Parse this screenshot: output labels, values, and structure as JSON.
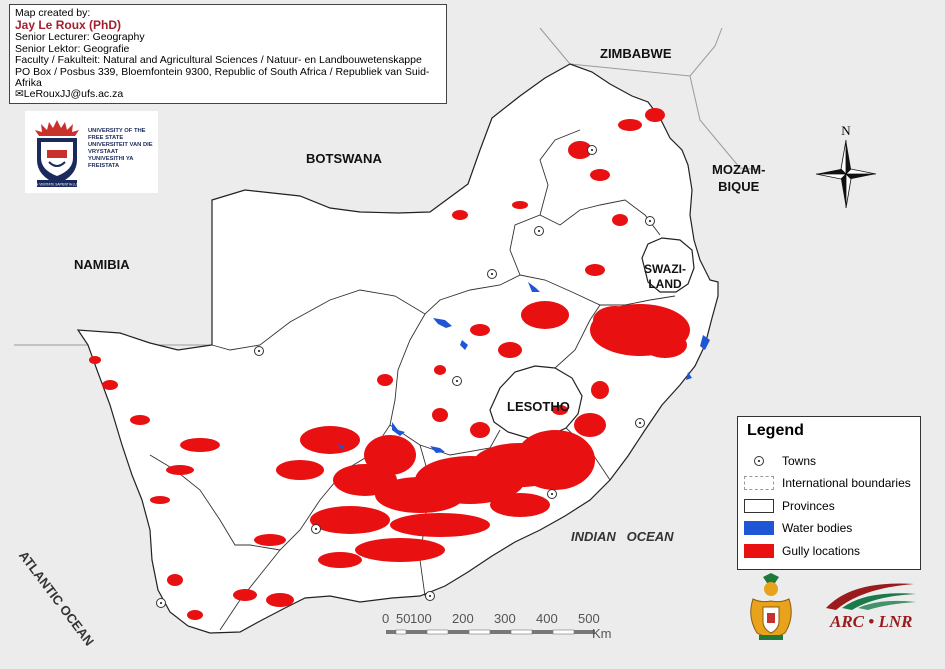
{
  "credit": {
    "line1": "Map created by:",
    "author": "Jay Le Roux (PhD)",
    "line3": "Senior Lecturer: Geography",
    "line4": "Senior Lektor: Geografie",
    "line5": "Faculty / Fakulteit: Natural and Agricultural Sciences / Natuur- en Landbouwetenskappe",
    "line6": "PO Box / Posbus 339, Bloemfontein 9300, Republic of South Africa / Republiek van Suid-Afrika",
    "email": "✉LeRouxJJ@ufs.ac.za"
  },
  "university": {
    "lines": [
      "UNIVERSITY OF THE",
      "FREE STATE",
      "UNIVERSITEIT VAN DIE",
      "VRYSTAAT",
      "YUNIVESITHI YA",
      "FREISTATA"
    ],
    "seal_text": "IN VERITATE SAPIENTIA LUX"
  },
  "labels": {
    "zimbabwe": "ZIMBABWE",
    "botswana": "BOTSWANA",
    "mozambique_1": "MOZAM-",
    "mozambique_2": "BIQUE",
    "namibia": "NAMIBIA",
    "swaziland_1": "SWAZI-",
    "swaziland_2": "LAND",
    "lesotho": "LESOTHO",
    "indian_ocean": "INDIAN   OCEAN",
    "atlantic_ocean": "ATLANTIC OCEAN"
  },
  "compass": {
    "north": "N"
  },
  "legend": {
    "title": "Legend",
    "items": [
      {
        "label": "Towns",
        "type": "point"
      },
      {
        "label": "International boundaries",
        "type": "dashed",
        "color": "#9a9a9a"
      },
      {
        "label": "Provinces",
        "type": "outline",
        "color": "#333333"
      },
      {
        "label": "Water bodies",
        "type": "fill",
        "color": "#1f56d6"
      },
      {
        "label": "Gully locations",
        "type": "fill",
        "color": "#e81010"
      }
    ]
  },
  "scale": {
    "ticks": [
      "0",
      "50",
      "100",
      "200",
      "300",
      "400",
      "500"
    ],
    "unit": "Km"
  },
  "arc": {
    "text": "ARC • LNR"
  },
  "colors": {
    "gully": "#e81010",
    "water": "#1f56d6",
    "land": "#ffffff",
    "neighbours": "#ececec"
  }
}
